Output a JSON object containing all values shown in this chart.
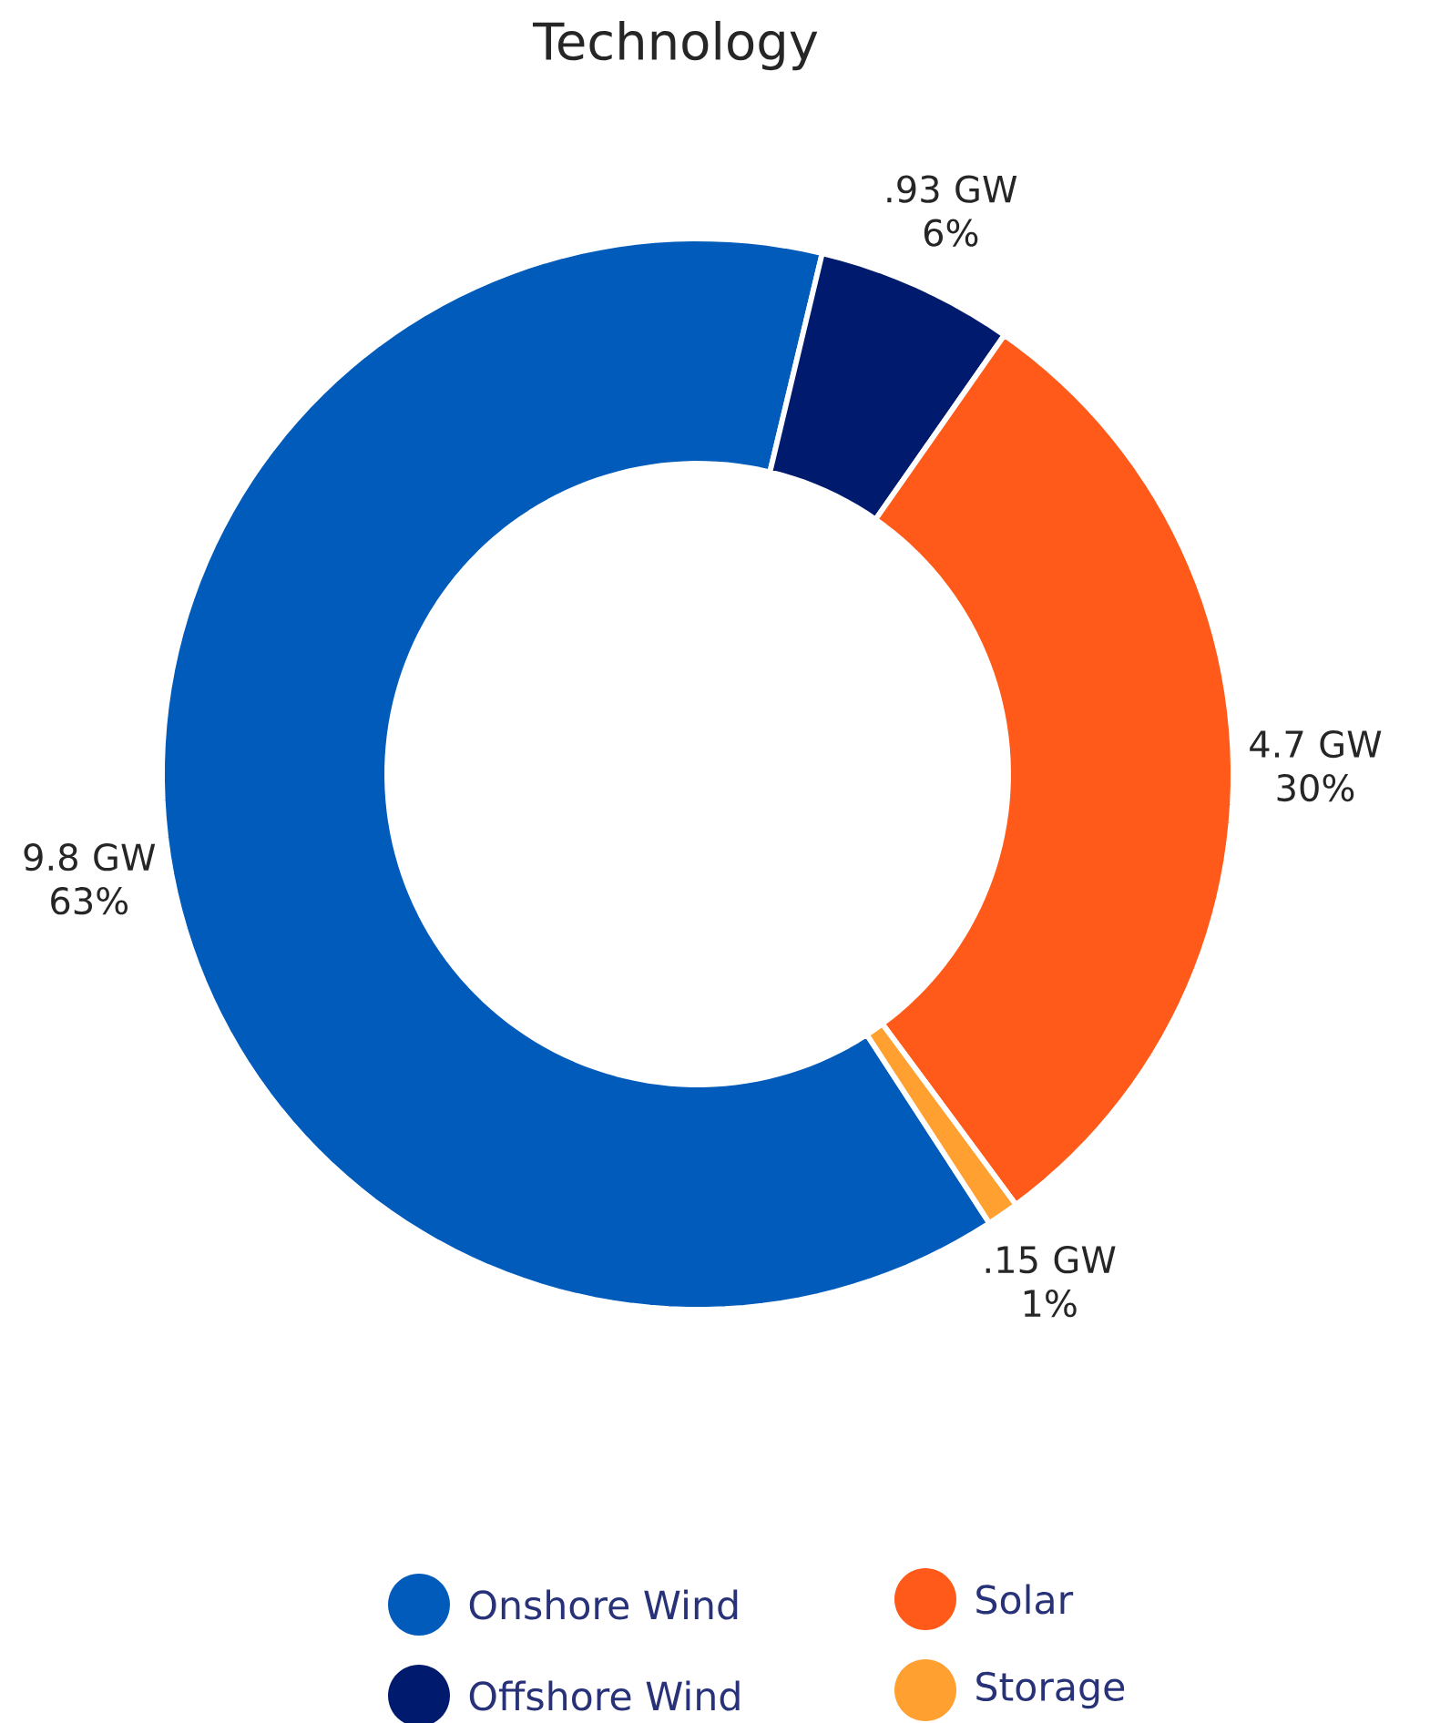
{
  "chart_data": {
    "type": "donut",
    "title": "Technology",
    "categories": [
      "Onshore Wind",
      "Offshore Wind",
      "Solar",
      "Storage"
    ],
    "values": [
      9.8,
      0.93,
      4.7,
      0.15
    ],
    "value_labels": [
      "9.8 GW 63%",
      ".93 GW 6%",
      "4.7 GW 30%",
      ".15 GW 1%"
    ],
    "colors": [
      "#005bbb",
      "#001a6e",
      "#ff5a19",
      "#ffa030"
    ],
    "legend": "bottom"
  }
}
